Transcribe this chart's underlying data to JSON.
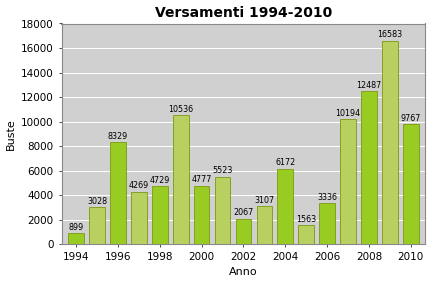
{
  "title": "Versamenti 1994-2010",
  "xlabel": "Anno",
  "ylabel": "Buste",
  "years": [
    1994,
    1995,
    1996,
    1997,
    1998,
    1999,
    2000,
    2001,
    2002,
    2003,
    2004,
    2005,
    2006,
    2007,
    2008,
    2009,
    2010
  ],
  "values": [
    899,
    3028,
    8329,
    4269,
    4729,
    10536,
    4777,
    5523,
    2067,
    3107,
    6172,
    1563,
    3336,
    10194,
    12487,
    16583,
    9767
  ],
  "bar_color_odd": "#b8d060",
  "bar_color_even": "#99cc22",
  "bar_edge_color": "#7a9a10",
  "background_color": "#e8e8e8",
  "plot_bg_color": "#d0d0d0",
  "outer_bg_color": "#ffffff",
  "ylim": [
    0,
    18000
  ],
  "yticks": [
    0,
    2000,
    4000,
    6000,
    8000,
    10000,
    12000,
    14000,
    16000,
    18000
  ],
  "title_fontsize": 10,
  "axis_label_fontsize": 8,
  "tick_fontsize": 7.5,
  "value_fontsize": 5.8,
  "xtick_labels": [
    "1994",
    "1996",
    "1998",
    "2000",
    "2002",
    "2004",
    "2006",
    "2008",
    "2010"
  ]
}
